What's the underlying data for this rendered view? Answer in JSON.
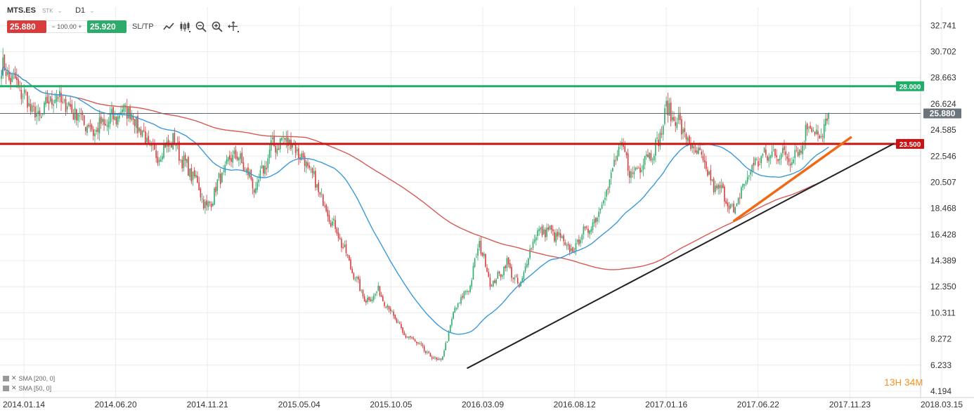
{
  "header": {
    "symbol": "MTS.ES",
    "asset_class": "STK",
    "timeframe": "D1",
    "sell_price": "25.880",
    "quantity": "100.00",
    "buy_price": "25.920",
    "sltp_label": "SL/TP",
    "qty_minus": "−",
    "qty_plus": "+"
  },
  "toolbar_icons": [
    "trend-line-icon",
    "candle-type-icon",
    "zoom-out-icon",
    "zoom-in-icon",
    "crosshair-icon"
  ],
  "indicators": [
    {
      "label": "SMA [200, 0]",
      "color": "#d9534f"
    },
    {
      "label": "SMA [50, 0]",
      "color": "#3a9ad9"
    }
  ],
  "timer": {
    "hours": "13",
    "h": "H",
    "minutes": "34",
    "m": "M"
  },
  "colors": {
    "bull": "#2eaa6a",
    "bear": "#d83b3b",
    "sma200": "#d65a55",
    "sma50": "#3a9ad9",
    "level_green": "#1fae6a",
    "level_red": "#c81414",
    "current": "#5a6670",
    "trend_black": "#222222",
    "trend_orange": "#ee6a18",
    "grid": "#ececec",
    "axis_text": "#333333"
  },
  "chart_data": {
    "type": "candlestick",
    "ylim": [
      4.194,
      33.8
    ],
    "y_ticks": [
      "32.741",
      "30.702",
      "28.663",
      "26.624",
      "24.585",
      "22.546",
      "20.507",
      "18.468",
      "16.428",
      "14.389",
      "12.350",
      "10.311",
      "8.272",
      "6.233",
      "4.194"
    ],
    "x_ticks": [
      "2014.01.14",
      "2014.06.20",
      "2014.11.21",
      "2015.05.04",
      "2015.10.05",
      "2016.03.09",
      "2016.08.12",
      "2017.01.16",
      "2017.06.22",
      "2017.11.23",
      "2018.03.15"
    ],
    "close_anchors": [
      {
        "i": 0,
        "v": 29.5
      },
      {
        "i": 12,
        "v": 27.8
      },
      {
        "i": 24,
        "v": 25.4
      },
      {
        "i": 34,
        "v": 27.3
      },
      {
        "i": 48,
        "v": 26.0
      },
      {
        "i": 60,
        "v": 24.5
      },
      {
        "i": 70,
        "v": 25.2
      },
      {
        "i": 82,
        "v": 26.3
      },
      {
        "i": 90,
        "v": 24.8
      },
      {
        "i": 100,
        "v": 22.5
      },
      {
        "i": 112,
        "v": 23.8
      },
      {
        "i": 120,
        "v": 21.8
      },
      {
        "i": 128,
        "v": 20.5
      },
      {
        "i": 134,
        "v": 18.3
      },
      {
        "i": 142,
        "v": 20.6
      },
      {
        "i": 152,
        "v": 22.8
      },
      {
        "i": 160,
        "v": 21.4
      },
      {
        "i": 166,
        "v": 19.8
      },
      {
        "i": 176,
        "v": 23.2
      },
      {
        "i": 186,
        "v": 23.9
      },
      {
        "i": 194,
        "v": 22.9
      },
      {
        "i": 202,
        "v": 21.2
      },
      {
        "i": 210,
        "v": 19.0
      },
      {
        "i": 220,
        "v": 16.4
      },
      {
        "i": 230,
        "v": 13.3
      },
      {
        "i": 238,
        "v": 11.2
      },
      {
        "i": 246,
        "v": 12.0
      },
      {
        "i": 254,
        "v": 10.5
      },
      {
        "i": 262,
        "v": 8.7
      },
      {
        "i": 270,
        "v": 8.1
      },
      {
        "i": 280,
        "v": 6.9
      },
      {
        "i": 287,
        "v": 6.5
      },
      {
        "i": 296,
        "v": 10.6
      },
      {
        "i": 306,
        "v": 12.5
      },
      {
        "i": 312,
        "v": 15.8
      },
      {
        "i": 320,
        "v": 12.4
      },
      {
        "i": 330,
        "v": 14.2
      },
      {
        "i": 338,
        "v": 12.2
      },
      {
        "i": 348,
        "v": 16.4
      },
      {
        "i": 356,
        "v": 16.8
      },
      {
        "i": 364,
        "v": 16.2
      },
      {
        "i": 372,
        "v": 15.0
      },
      {
        "i": 380,
        "v": 16.6
      },
      {
        "i": 386,
        "v": 17.2
      },
      {
        "i": 396,
        "v": 20.2
      },
      {
        "i": 404,
        "v": 23.4
      },
      {
        "i": 412,
        "v": 21.0
      },
      {
        "i": 420,
        "v": 22.5
      },
      {
        "i": 428,
        "v": 23.3
      },
      {
        "i": 434,
        "v": 26.2
      },
      {
        "i": 442,
        "v": 25.2
      },
      {
        "i": 450,
        "v": 23.3
      },
      {
        "i": 458,
        "v": 22.1
      },
      {
        "i": 464,
        "v": 20.3
      },
      {
        "i": 472,
        "v": 19.6
      },
      {
        "i": 478,
        "v": 18.0
      },
      {
        "i": 484,
        "v": 20.2
      },
      {
        "i": 492,
        "v": 22.1
      },
      {
        "i": 500,
        "v": 22.6
      },
      {
        "i": 508,
        "v": 22.8
      },
      {
        "i": 514,
        "v": 22.4
      },
      {
        "i": 522,
        "v": 23.2
      },
      {
        "i": 528,
        "v": 25.4
      },
      {
        "i": 534,
        "v": 23.6
      },
      {
        "i": 540,
        "v": 25.88
      }
    ],
    "levels": [
      {
        "label": "28.000",
        "value": 28.0
      },
      {
        "label": "23.500",
        "value": 23.5
      },
      {
        "label": "25.880",
        "value": 25.88
      }
    ],
    "trendlines": [
      {
        "from": {
          "date": "2016.02.12",
          "value": 6.0
        },
        "to": {
          "date": "2018.01.15",
          "value": 23.5
        }
      },
      {
        "from": {
          "date": "2017.05.12",
          "value": 17.5
        },
        "to": {
          "date": "2017.11.24",
          "value": 24.0
        }
      }
    ]
  }
}
